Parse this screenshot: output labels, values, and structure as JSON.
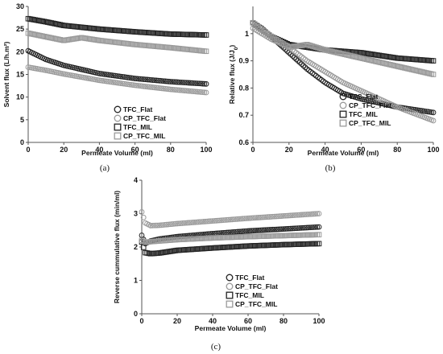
{
  "chart_data": [
    {
      "type": "scatter",
      "panel_label": "(a)",
      "xlabel": "Permeate Volume (ml)",
      "ylabel": "Solvent flux (L/h.m²)",
      "xlim": [
        0,
        100
      ],
      "ylim": [
        0,
        30
      ],
      "xticks": [
        0,
        20,
        40,
        60,
        80,
        100
      ],
      "yticks": [
        0,
        5,
        10,
        15,
        20,
        25,
        30
      ],
      "grid": false,
      "legend_position": "bottom-right",
      "series": [
        {
          "name": "TFC_Flat",
          "marker": "circle",
          "color": "#222222",
          "x": [
            0,
            10,
            20,
            40,
            60,
            80,
            100
          ],
          "y": [
            20.2,
            18.3,
            17,
            15.2,
            14.1,
            13.4,
            12.9
          ]
        },
        {
          "name": "CP_TFC_Flat",
          "marker": "circle",
          "color": "#9a9a9a",
          "x": [
            0,
            10,
            20,
            40,
            60,
            80,
            100
          ],
          "y": [
            16.6,
            15.9,
            15.1,
            13.7,
            12.6,
            11.7,
            11
          ]
        },
        {
          "name": "TFC_MIL",
          "marker": "square",
          "color": "#222222",
          "x": [
            0,
            10,
            20,
            40,
            60,
            80,
            100
          ],
          "y": [
            27.3,
            26.6,
            25.8,
            25,
            24.4,
            23.9,
            23.7
          ]
        },
        {
          "name": "CP_TFC_MIL",
          "marker": "square",
          "color": "#9a9a9a",
          "x": [
            0,
            10,
            20,
            30,
            40,
            60,
            80,
            100
          ],
          "y": [
            24.1,
            23.3,
            22.5,
            23.1,
            22.5,
            21.6,
            20.9,
            20.1
          ]
        }
      ]
    },
    {
      "type": "scatter",
      "panel_label": "(b)",
      "xlabel": "Permeate Volume (ml)",
      "ylabel": "Relative flux (J/J",
      "ylabel_sub": "0",
      "ylabel_tail": ")",
      "xlim": [
        0,
        100
      ],
      "ylim": [
        0.6,
        1.1
      ],
      "xticks": [
        0,
        20,
        40,
        60,
        80,
        100
      ],
      "yticks": [
        0.6,
        0.7,
        0.8,
        0.9,
        1
      ],
      "ytick_labels": [
        "0.6",
        "0.7",
        "0.8",
        "0.9",
        "1"
      ],
      "grid": false,
      "legend_position": "bottom-left",
      "series": [
        {
          "name": "TFC_Flat",
          "marker": "circle",
          "color": "#222222",
          "x": [
            0,
            5,
            10,
            20,
            30,
            40,
            50,
            60,
            80,
            100
          ],
          "y": [
            1.04,
            1.02,
            0.99,
            0.93,
            0.87,
            0.82,
            0.78,
            0.76,
            0.73,
            0.71
          ]
        },
        {
          "name": "CP_TFC_Flat",
          "marker": "circle",
          "color": "#9a9a9a",
          "x": [
            0,
            5,
            10,
            20,
            30,
            40,
            50,
            60,
            80,
            100
          ],
          "y": [
            1.02,
            1.0,
            0.98,
            0.95,
            0.9,
            0.86,
            0.82,
            0.79,
            0.73,
            0.68
          ]
        },
        {
          "name": "TFC_MIL",
          "marker": "square",
          "color": "#222222",
          "x": [
            0,
            10,
            20,
            40,
            60,
            80,
            100
          ],
          "y": [
            1.04,
            0.99,
            0.96,
            0.94,
            0.93,
            0.91,
            0.9
          ]
        },
        {
          "name": "CP_TFC_MIL",
          "marker": "square",
          "color": "#9a9a9a",
          "x": [
            0,
            10,
            20,
            30,
            40,
            60,
            80,
            100
          ],
          "y": [
            1.04,
            0.99,
            0.95,
            0.96,
            0.94,
            0.91,
            0.88,
            0.85
          ]
        }
      ]
    },
    {
      "type": "scatter",
      "panel_label": "(c)",
      "xlabel": "Permeate Volume (ml)",
      "ylabel": "Reverse cummulative flux (min/ml)",
      "xlim": [
        0,
        100
      ],
      "ylim": [
        0,
        4
      ],
      "xticks": [
        0,
        20,
        40,
        60,
        80,
        100
      ],
      "yticks": [
        0,
        1,
        2,
        3,
        4
      ],
      "grid": false,
      "legend_position": "bottom-right",
      "series": [
        {
          "name": "TFC_Flat",
          "marker": "circle",
          "color": "#222222",
          "x": [
            0,
            2,
            5,
            10,
            20,
            40,
            60,
            80,
            100
          ],
          "y": [
            2.35,
            2.1,
            2.18,
            2.24,
            2.31,
            2.4,
            2.48,
            2.54,
            2.6
          ]
        },
        {
          "name": "CP_TFC_Flat",
          "marker": "circle",
          "color": "#9a9a9a",
          "x": [
            0,
            2,
            5,
            10,
            20,
            40,
            60,
            80,
            100
          ],
          "y": [
            3.05,
            2.72,
            2.64,
            2.65,
            2.7,
            2.78,
            2.86,
            2.93,
            3.0
          ]
        },
        {
          "name": "TFC_MIL",
          "marker": "square",
          "color": "#222222",
          "x": [
            0,
            2,
            5,
            10,
            20,
            40,
            60,
            80,
            100
          ],
          "y": [
            2.15,
            1.83,
            1.8,
            1.82,
            1.9,
            1.97,
            2.03,
            2.07,
            2.1
          ]
        },
        {
          "name": "CP_TFC_MIL",
          "marker": "square",
          "color": "#9a9a9a",
          "x": [
            0,
            2,
            5,
            10,
            20,
            40,
            60,
            80,
            100
          ],
          "y": [
            2.2,
            2.14,
            2.16,
            2.18,
            2.22,
            2.27,
            2.31,
            2.34,
            2.37
          ]
        }
      ]
    }
  ]
}
